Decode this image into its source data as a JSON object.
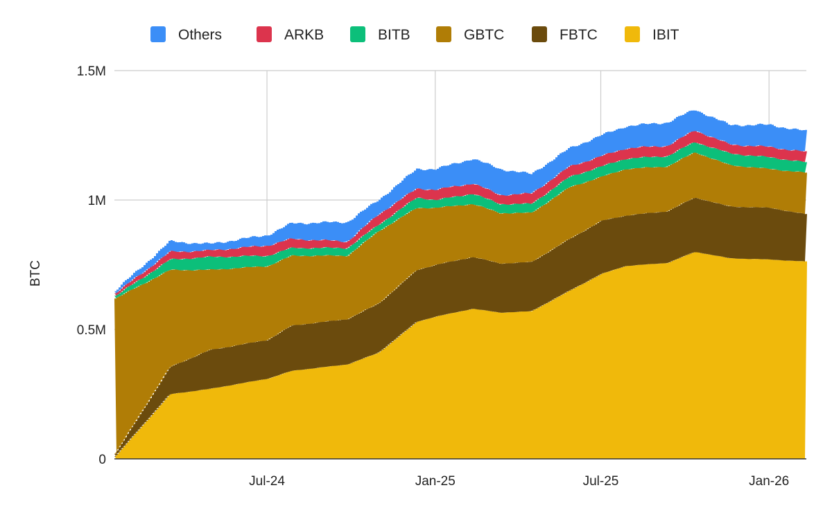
{
  "chart_data": {
    "type": "area",
    "stacked": true,
    "title": "",
    "xlabel": "",
    "ylabel": "BTC",
    "ylim": [
      0,
      1500000
    ],
    "yticks": [
      {
        "value": 0,
        "label": "0"
      },
      {
        "value": 500000,
        "label": "0.5M"
      },
      {
        "value": 1000000,
        "label": "1M"
      },
      {
        "value": 1500000,
        "label": "1.5M"
      }
    ],
    "xlim": [
      "2024-01-01",
      "2026-02-11"
    ],
    "xticks": [
      {
        "date": "2024-07-01",
        "label": "Jul-24"
      },
      {
        "date": "2025-01-01",
        "label": "Jan-25"
      },
      {
        "date": "2025-07-01",
        "label": "Jul-25"
      },
      {
        "date": "2026-01-01",
        "label": "Jan-26"
      }
    ],
    "grid": true,
    "legend_position": "top",
    "x": [
      "2024-01-16",
      "2024-03-16",
      "2024-04-28",
      "2024-07-01",
      "2024-07-27",
      "2024-09-26",
      "2024-10-30",
      "2024-12-11",
      "2025-01-01",
      "2025-02-10",
      "2025-03-12",
      "2025-04-15",
      "2025-05-27",
      "2025-07-01",
      "2025-07-27",
      "2025-09-11",
      "2025-10-11",
      "2025-11-18",
      "2026-01-01",
      "2026-02-09"
    ],
    "series": [
      {
        "name": "IBIT",
        "color": "#f0b90b",
        "values": [
          10000,
          250000,
          270000,
          310000,
          340000,
          365000,
          410000,
          530000,
          550000,
          580000,
          565000,
          570000,
          650000,
          715000,
          745000,
          757000,
          800000,
          775000,
          770000,
          762000
        ]
      },
      {
        "name": "FBTC",
        "color": "#6b4b0d",
        "values": [
          10000,
          105000,
          150000,
          150000,
          175000,
          175000,
          190000,
          200000,
          200000,
          200000,
          190000,
          190000,
          200000,
          205000,
          195000,
          200000,
          210000,
          200000,
          200000,
          182000
        ]
      },
      {
        "name": "GBTC",
        "color": "#b07d06",
        "values": [
          600000,
          375000,
          310000,
          285000,
          270000,
          245000,
          280000,
          240000,
          220000,
          205000,
          195000,
          190000,
          200000,
          170000,
          180000,
          173000,
          175000,
          160000,
          150000,
          161000
        ]
      },
      {
        "name": "BITB",
        "color": "#0cbf7a",
        "values": [
          10000,
          40000,
          50000,
          40000,
          30000,
          30000,
          25000,
          40000,
          30000,
          40000,
          35000,
          35000,
          40000,
          40000,
          40000,
          40000,
          40000,
          45000,
          45000,
          40000
        ]
      },
      {
        "name": "ARKB",
        "color": "#dc344d",
        "values": [
          10000,
          30000,
          25000,
          40000,
          35000,
          25000,
          40000,
          35000,
          40000,
          40000,
          35000,
          40000,
          40000,
          40000,
          40000,
          40000,
          45000,
          35000,
          40000,
          40000
        ]
      },
      {
        "name": "Others",
        "color": "#3b8ef7",
        "values": [
          10000,
          40000,
          25000,
          40000,
          60000,
          75000,
          55000,
          75000,
          80000,
          95000,
          100000,
          75000,
          70000,
          80000,
          85000,
          90000,
          80000,
          75000,
          85000,
          80000
        ]
      }
    ],
    "legend_order": [
      "Others",
      "ARKB",
      "BITB",
      "GBTC",
      "FBTC",
      "IBIT"
    ]
  }
}
